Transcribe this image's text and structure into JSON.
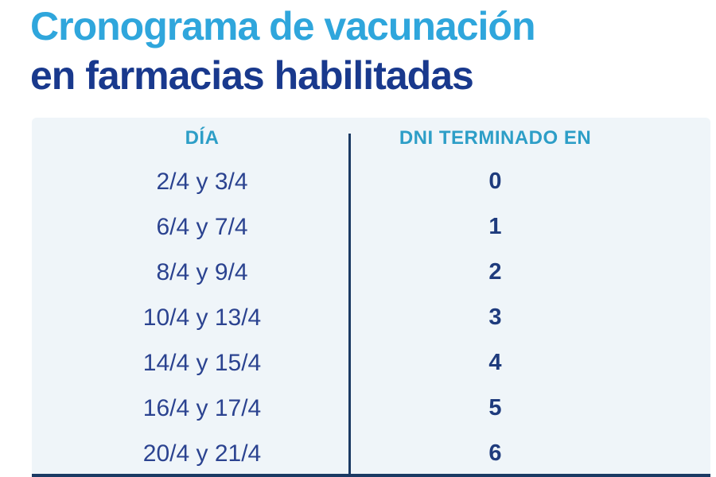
{
  "title": {
    "line1": "Cronograma de vacunación",
    "line2": "en farmacias habilitadas"
  },
  "table": {
    "headers": {
      "day": "DÍA",
      "dni": "DNI TERMINADO EN"
    },
    "rows": [
      {
        "day": "2/4 y 3/4",
        "dni": "0"
      },
      {
        "day": "6/4 y 7/4",
        "dni": "1"
      },
      {
        "day": "8/4 y 9/4",
        "dni": "2"
      },
      {
        "day": "10/4 y 13/4",
        "dni": "3"
      },
      {
        "day": "14/4 y 15/4",
        "dni": "4"
      },
      {
        "day": "16/4 y 17/4",
        "dni": "5"
      },
      {
        "day": "20/4 y 21/4",
        "dni": "6"
      }
    ]
  },
  "colors": {
    "title_light_blue": "#2fa6dc",
    "title_dark_blue": "#19398d",
    "header_teal": "#2d9ec7",
    "day_text_blue": "#2b4390",
    "dni_digit_navy": "#1e3b7d",
    "divider_navy": "#1b3a64",
    "panel_background": "#eff5f9",
    "page_background": "#ffffff"
  }
}
